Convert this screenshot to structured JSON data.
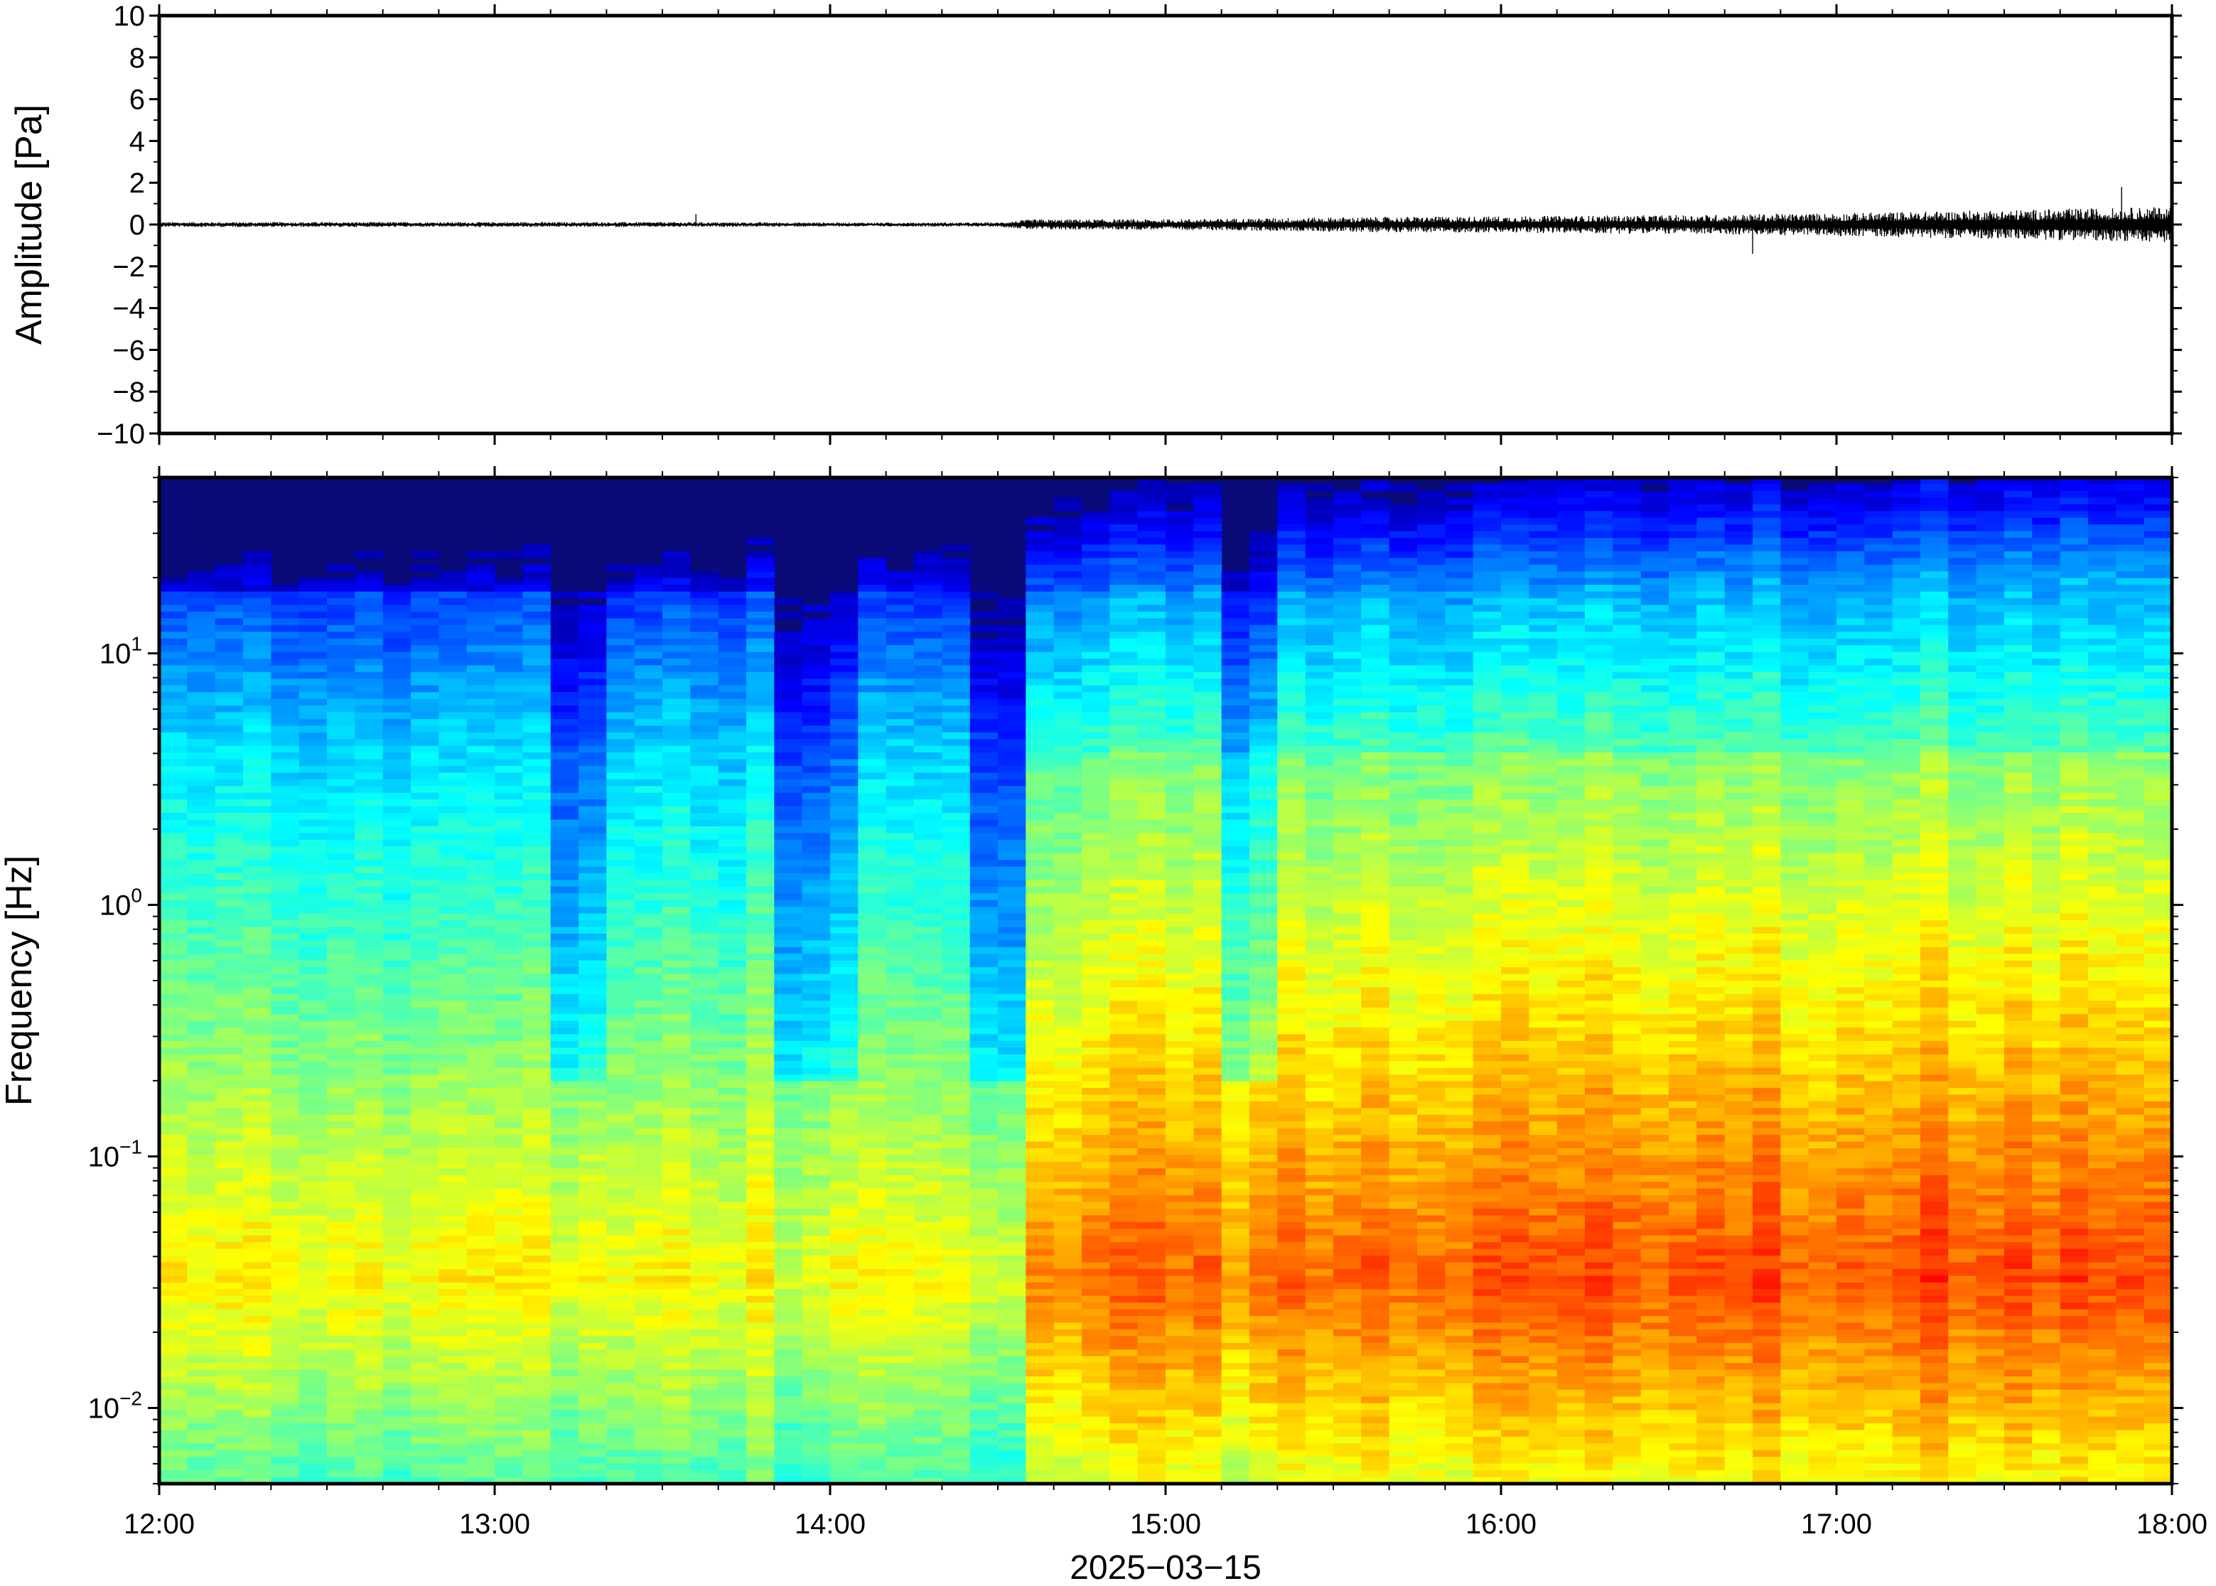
{
  "chart_data": [
    {
      "type": "line",
      "panel": "waveform",
      "title": "",
      "ylabel": "Amplitude [Pa]",
      "xlabel": "",
      "ylim": [
        -10,
        10
      ],
      "yticks": [
        {
          "value": 10,
          "label": "10"
        },
        {
          "value": 8,
          "label": "8"
        },
        {
          "value": 6,
          "label": "6"
        },
        {
          "value": 4,
          "label": "4"
        },
        {
          "value": 2,
          "label": "2"
        },
        {
          "value": 0,
          "label": "0"
        },
        {
          "value": -2,
          "label": "−2"
        },
        {
          "value": -4,
          "label": "−4"
        },
        {
          "value": -6,
          "label": "−6"
        },
        {
          "value": -8,
          "label": "−8"
        },
        {
          "value": -10,
          "label": "−10"
        }
      ],
      "x_range": [
        "12:00",
        "18:00"
      ],
      "envelope": {
        "x_hours": [
          12.0,
          12.5,
          13.0,
          13.5,
          14.0,
          14.5,
          14.6,
          15.0,
          15.5,
          16.0,
          16.5,
          17.0,
          17.5,
          18.0
        ],
        "amplitude_pa": [
          0.12,
          0.12,
          0.12,
          0.12,
          0.1,
          0.1,
          0.25,
          0.25,
          0.35,
          0.4,
          0.45,
          0.55,
          0.7,
          0.85
        ]
      },
      "spikes": [
        {
          "x_hour": 13.6,
          "amplitude_pa": 0.5
        },
        {
          "x_hour": 16.75,
          "amplitude_pa": -1.4
        },
        {
          "x_hour": 17.85,
          "amplitude_pa": 1.8
        }
      ],
      "grid": false
    },
    {
      "type": "heatmap",
      "panel": "spectrogram",
      "title": "",
      "ylabel": "Frequency [Hz]",
      "xlabel": "2025−03−15",
      "y_scale": "log",
      "ylim_hz": [
        0.005,
        50
      ],
      "yticks": [
        {
          "value": 10,
          "base": "10",
          "exp": "1"
        },
        {
          "value": 1,
          "base": "10",
          "exp": "0"
        },
        {
          "value": 0.1,
          "base": "10",
          "exp": "−1"
        },
        {
          "value": 0.01,
          "base": "10",
          "exp": "−2"
        }
      ],
      "colormap": "jet",
      "background_color": "#0a0a78",
      "x_range": [
        "12:00",
        "18:00"
      ],
      "time_columns": 72,
      "notable_low_energy_hours": [
        13.25,
        13.92,
        14.0,
        14.5,
        15.25
      ],
      "energy_step_hour": 14.55,
      "high_energy_band_hz": [
        0.03,
        0.2
      ],
      "grid": false
    }
  ],
  "xaxis": {
    "ticks": [
      {
        "hour": 12,
        "label": "12:00"
      },
      {
        "hour": 13,
        "label": "13:00"
      },
      {
        "hour": 14,
        "label": "14:00"
      },
      {
        "hour": 15,
        "label": "15:00"
      },
      {
        "hour": 16,
        "label": "16:00"
      },
      {
        "hour": 17,
        "label": "17:00"
      },
      {
        "hour": 18,
        "label": "18:00"
      }
    ],
    "minor_ticks_per_hour": 6,
    "date_label": "2025−03−15"
  }
}
